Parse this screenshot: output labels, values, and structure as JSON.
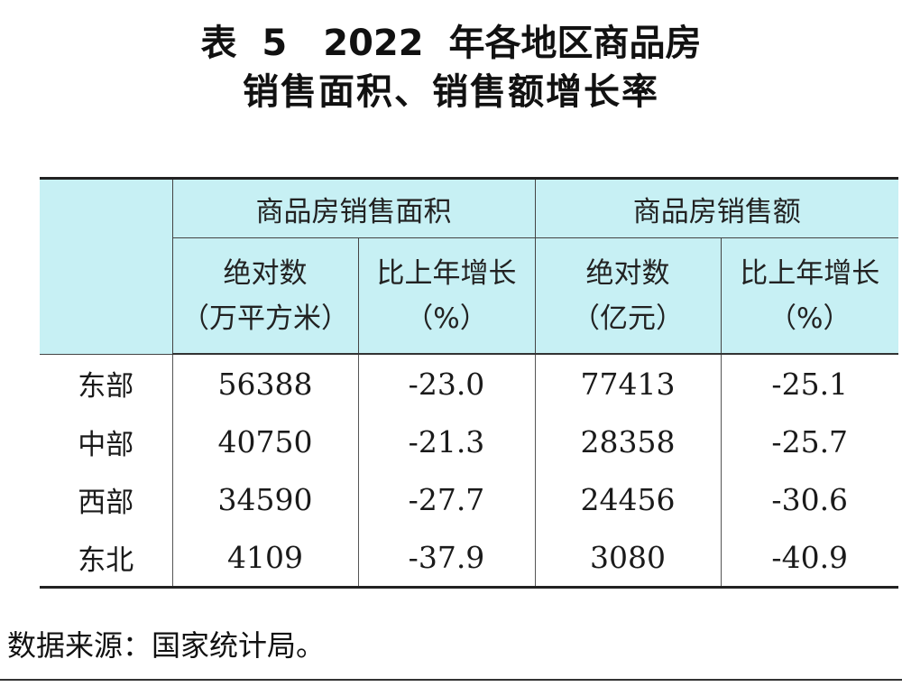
{
  "title_line1": "表 5　2022 年各地区商品房",
  "title_line2": "销售面积、销售额增长率",
  "table": {
    "group_headers": [
      "商品房销售面积",
      "商品房销售额"
    ],
    "sub_headers": [
      {
        "line1": "绝对数",
        "line2": "（万平方米）"
      },
      {
        "line1": "比上年增长",
        "line2": "（%）"
      },
      {
        "line1": "绝对数",
        "line2": "（亿元）"
      },
      {
        "line1": "比上年增长",
        "line2": "（%）"
      }
    ],
    "rows": [
      {
        "region": "东部",
        "area": "56388",
        "area_growth": "-23.0",
        "sales": "77413",
        "sales_growth": "-25.1"
      },
      {
        "region": "中部",
        "area": "40750",
        "area_growth": "-21.3",
        "sales": "28358",
        "sales_growth": "-25.7"
      },
      {
        "region": "西部",
        "area": "34590",
        "area_growth": "-27.7",
        "sales": "24456",
        "sales_growth": "-30.6"
      },
      {
        "region": "东北",
        "area": "4109",
        "area_growth": "-37.9",
        "sales": "3080",
        "sales_growth": "-40.9"
      }
    ]
  },
  "source": "数据来源：国家统计局。"
}
